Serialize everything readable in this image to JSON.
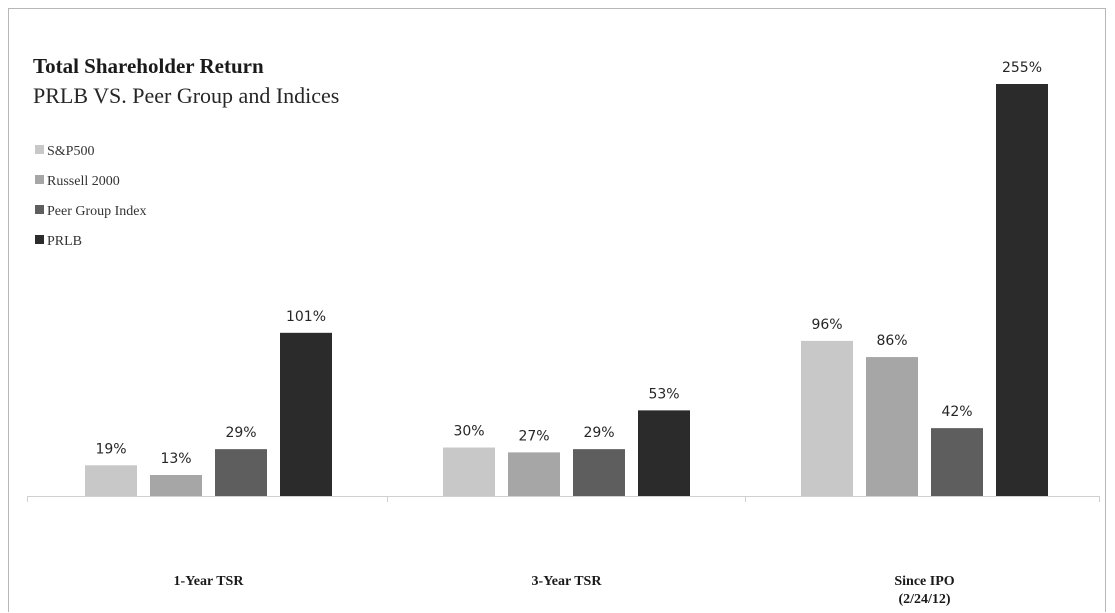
{
  "chart_data": {
    "type": "bar",
    "title": "Total Shareholder Return",
    "subtitle": "PRLB VS. Peer Group and Indices",
    "categories": [
      [
        "1-Year TSR"
      ],
      [
        "3-Year TSR"
      ],
      [
        "Since IPO",
        "(2/24/12)"
      ]
    ],
    "series": [
      {
        "name": "S&P500",
        "color": "#c8c8c8",
        "values": [
          19,
          30,
          96
        ],
        "labels": [
          "19%",
          "30%",
          "96%"
        ]
      },
      {
        "name": "Russell 2000",
        "color": "#a6a6a6",
        "values": [
          13,
          27,
          86
        ],
        "labels": [
          "13%",
          "27%",
          "86%"
        ]
      },
      {
        "name": "Peer Group Index",
        "color": "#5e5e5e",
        "values": [
          29,
          29,
          42
        ],
        "labels": [
          "29%",
          "29%",
          "42%"
        ]
      },
      {
        "name": "PRLB",
        "color": "#2b2b2b",
        "values": [
          101,
          53,
          255
        ],
        "labels": [
          "101%",
          "53%",
          "255%"
        ]
      }
    ],
    "legend_position": "top-left",
    "grid": false,
    "ylim": [
      0,
      255
    ]
  }
}
